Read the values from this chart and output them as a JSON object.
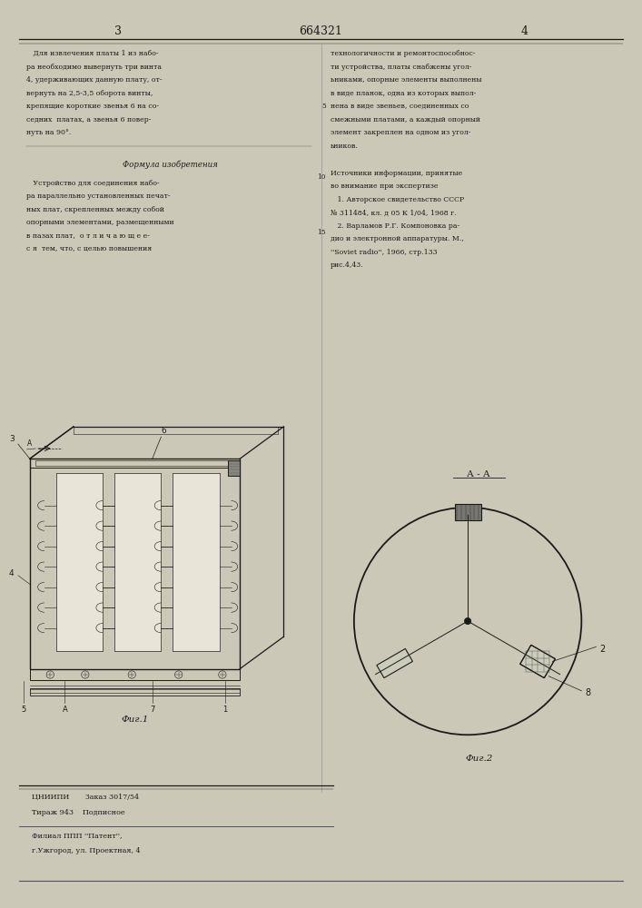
{
  "bg_color": "#e8e4dc",
  "page_color": "#f0ece0",
  "text_color": "#1a1a1a",
  "header": {
    "left_page_num": "3",
    "center_patent_num": "664321",
    "right_page_num": "4"
  },
  "left_column_text": [
    "   Для извлечения платы 1 из набо-",
    "ра необходимо вывернуть три винта",
    "4, удерживающих данную плату, от-",
    "вернуть на 2,5-3,5 оборота винты,",
    "крепящие короткие звенья 6 на со-",
    "седних  платах, а звенья 6 повер-",
    "нуть на 90°."
  ],
  "formula_title": "Формула изобретения",
  "formula_text": [
    "   Устройство для соединения набо-",
    "ра параллельно установленных печат-",
    "ных плат, скрепленных между собой",
    "опорными элементами, размещенными",
    "в пазах плат,  о т л и ч а ю щ е е-",
    "с я  тем, что, с целью повышения"
  ],
  "right_column_text": [
    "технологичности и ремонтоспособнос-",
    "ти устройства, платы снабжены угол-",
    "ьниками, опорные элементы выполнены",
    "в виде планок, одна из которых выпол-",
    "нена в виде звеньев, соединенных со",
    "смежными платами, а каждый опорный",
    "элемент закреплен на одном из угол-",
    "ьников."
  ],
  "sources_title": "Источники информации, принятые",
  "sources_subtitle": "во внимание при экспертизе",
  "sources_text": [
    "   1. Авторское свидетельство СССР",
    "№ 311484, кл. д 05 К 1/04, 1968 г.",
    "   2. Варламов Р.Г. Компоновка ра-",
    "дио и электронной аппаратуры. М.,",
    "''Soviet radio'', 1966, стр.133",
    "рис.4,43."
  ],
  "fig1_caption": "Фиг.1",
  "fig2_caption": "Фиг.2",
  "fig2_label_AA": "А - А",
  "bottom_left": [
    "ЦНИИПИ       Заказ 3017/54",
    "Тираж 943    Подписное"
  ],
  "bottom_addr1": "Филиал ППП ''Патент'',",
  "bottom_addr2": "г.Ужгород, ул. Проектная, 4"
}
